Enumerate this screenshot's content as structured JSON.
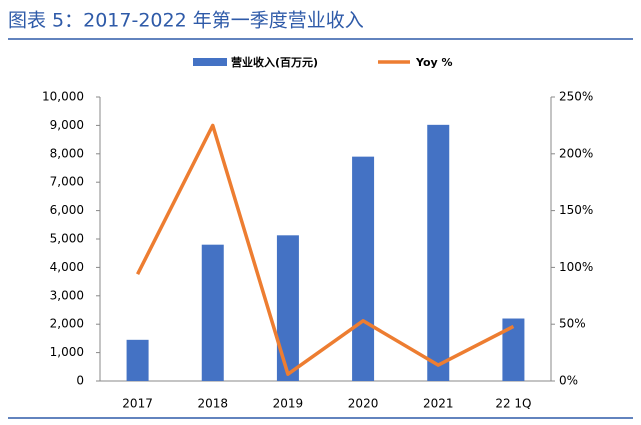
{
  "chart_data": {
    "type": "combo",
    "title": "图表 5：2017-2022 年第一季度营业收入",
    "categories": [
      "2017",
      "2018",
      "2019",
      "2020",
      "2021",
      "22 1Q"
    ],
    "series": [
      {
        "name": "营业收入(百万元)",
        "type": "bar",
        "color": "#4472c4",
        "values": [
          1450,
          4800,
          5130,
          7900,
          9020,
          2200
        ]
      },
      {
        "name": "Yoy %",
        "type": "line",
        "axis": "y2",
        "color": "#ed7d31",
        "values": [
          94,
          225,
          6,
          53,
          14,
          48
        ]
      }
    ],
    "ylim": [
      0,
      10000
    ],
    "yticks": [
      0,
      {
        "value": 1000,
        "label": "1,000"
      },
      {
        "value": 2000,
        "label": "2,000"
      },
      {
        "value": 3000,
        "label": "3,000"
      },
      {
        "value": 4000,
        "label": "4,000"
      },
      {
        "value": 5000,
        "label": "5,000"
      },
      {
        "value": 6000,
        "label": "6,000"
      },
      {
        "value": 7000,
        "label": "7,000"
      },
      {
        "value": 8000,
        "label": "8,000"
      },
      {
        "value": 9000,
        "label": "9,000"
      },
      {
        "value": 10000,
        "label": "10,000"
      }
    ],
    "y2lim": [
      0,
      250
    ],
    "y2ticks": [
      {
        "value": 0,
        "label": "0%"
      },
      {
        "value": 50,
        "label": "50%"
      },
      {
        "value": 100,
        "label": "100%"
      },
      {
        "value": 150,
        "label": "150%"
      },
      {
        "value": 200,
        "label": "200%"
      },
      {
        "value": 250,
        "label": "250%"
      }
    ],
    "grid": false
  }
}
